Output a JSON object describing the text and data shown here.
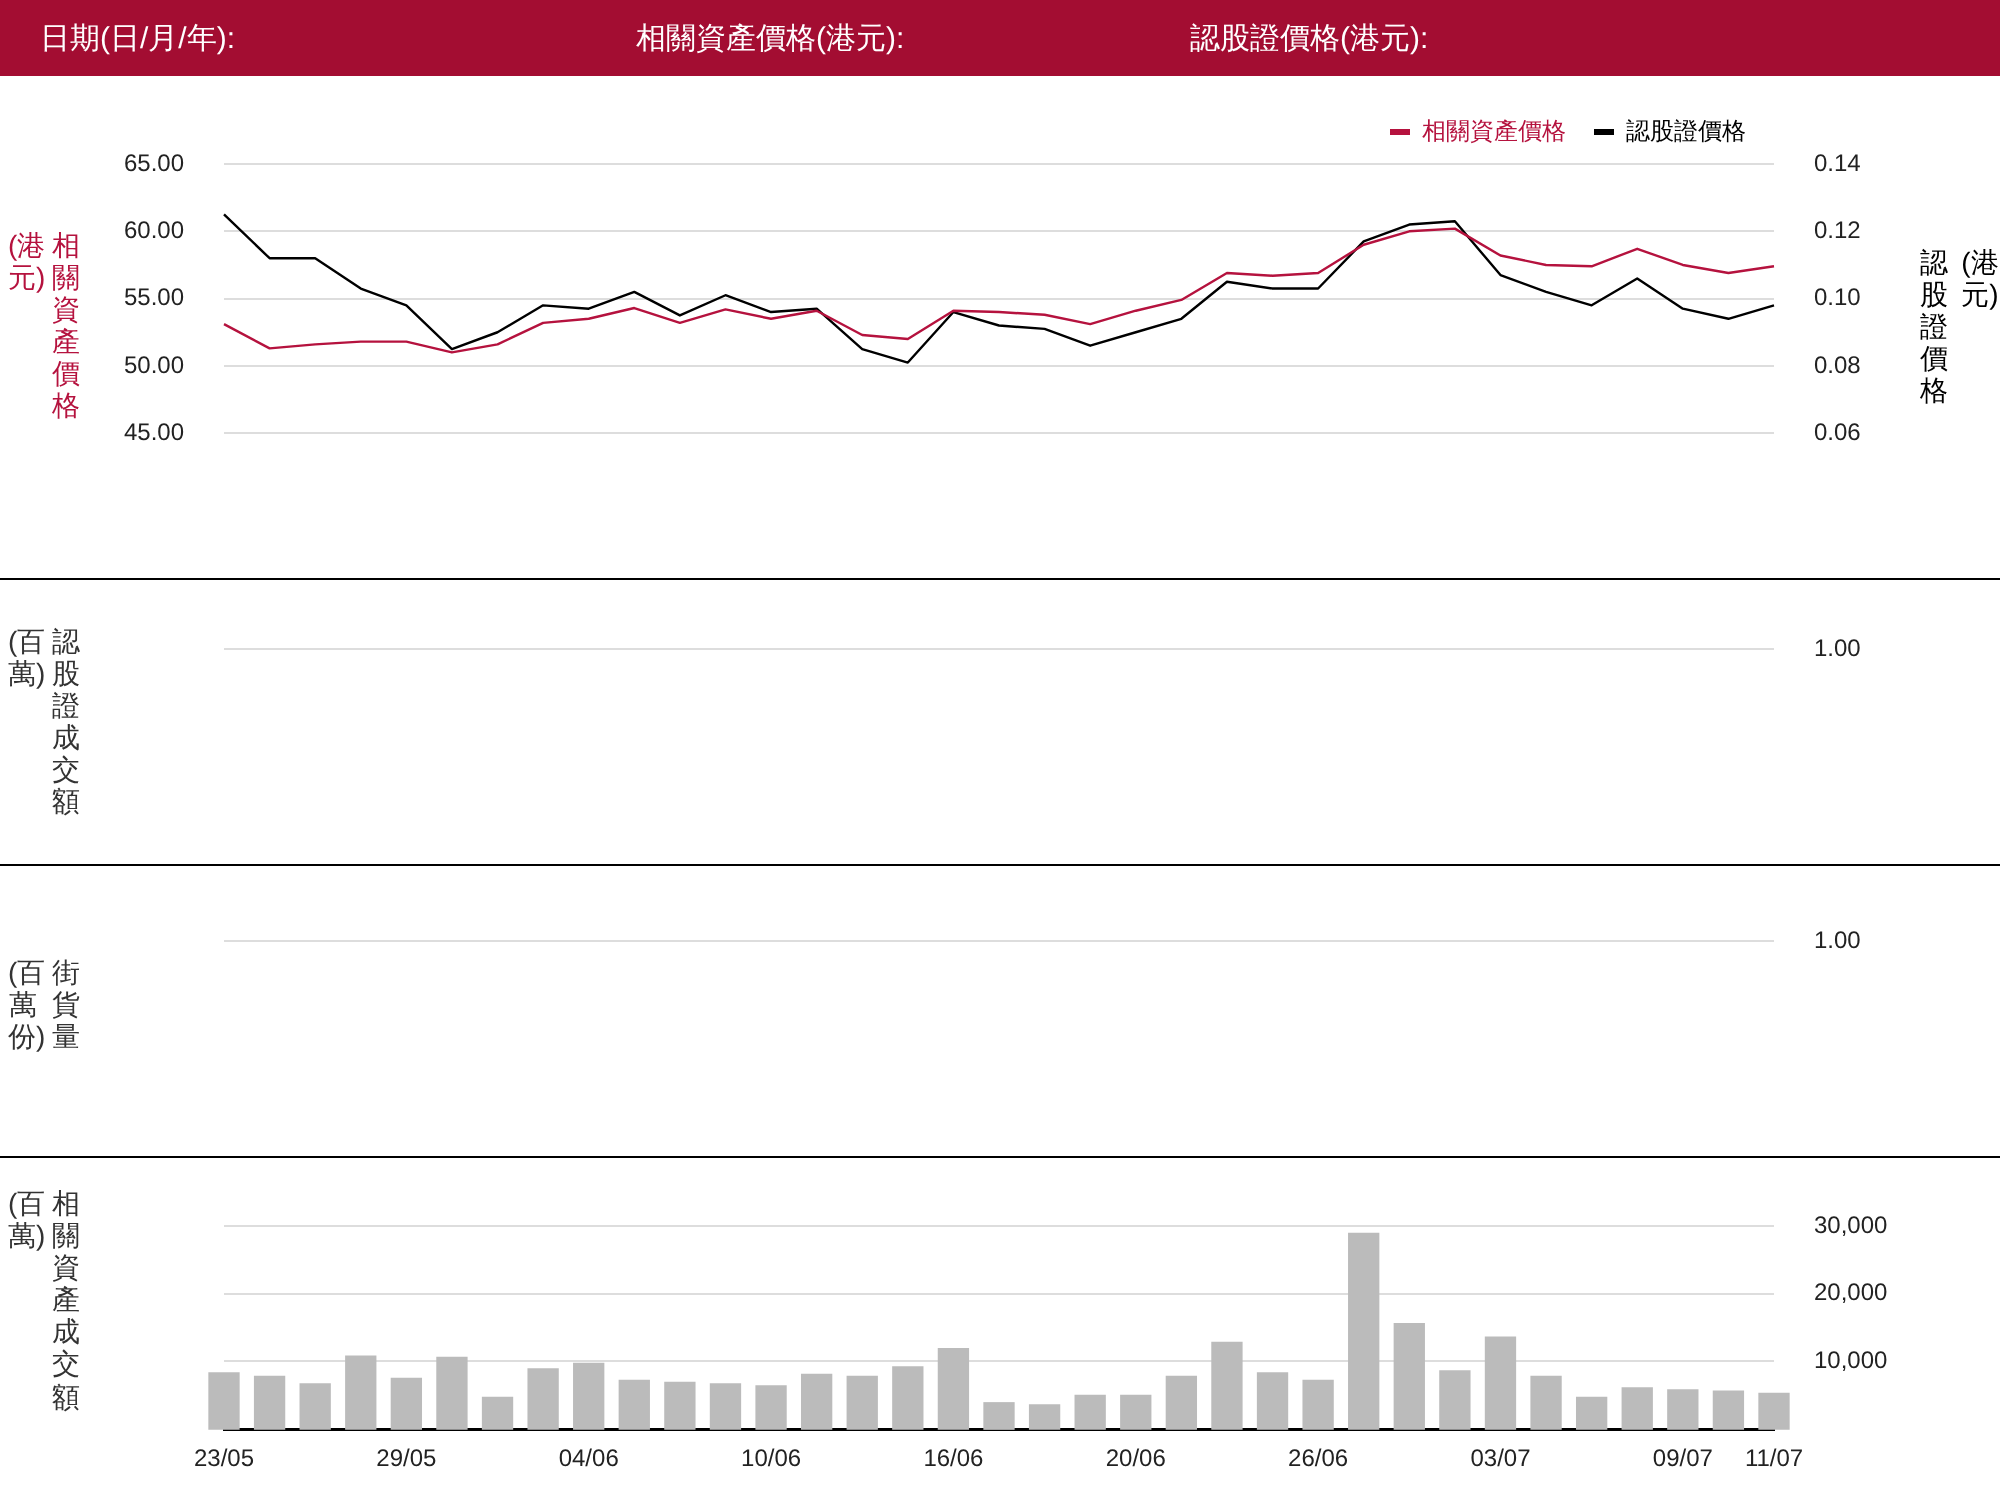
{
  "chart_data": [
    {
      "type": "other",
      "annotations": [
        "日期(日/月/年):",
        "相關資產價格(港元):",
        "認股證價格(港元):"
      ]
    },
    {
      "type": "line",
      "categories": [
        null,
        null,
        null,
        null,
        null,
        null,
        null,
        null,
        null,
        null,
        null,
        null,
        null,
        null,
        null,
        null,
        null,
        null,
        null,
        null,
        null,
        null,
        null,
        null,
        null,
        null,
        null,
        null,
        null,
        null,
        null,
        null,
        null,
        null,
        null
      ],
      "series": [
        {
          "name": "相關資產價格",
          "color": "#b5123e",
          "values": [
            53.1,
            51.3,
            51.6,
            51.8,
            51.8,
            51.0,
            51.6,
            53.2,
            53.5,
            54.3,
            53.2,
            54.2,
            53.5,
            54.1,
            52.3,
            52.0,
            54.1,
            54.0,
            53.8,
            53.1,
            54.1,
            54.9,
            56.9,
            56.7,
            56.9,
            59.0,
            60.0,
            60.2,
            58.2,
            57.5,
            57.4,
            58.7,
            57.5,
            56.9,
            57.4
          ]
        },
        {
          "name": "認股證價格",
          "color": "#000000",
          "axis": "y2",
          "values": [
            0.125,
            0.112,
            0.112,
            0.103,
            0.098,
            0.085,
            0.09,
            0.098,
            0.097,
            0.102,
            0.095,
            0.101,
            0.096,
            0.097,
            0.085,
            0.081,
            0.096,
            0.092,
            0.091,
            0.086,
            0.09,
            0.094,
            0.105,
            0.103,
            0.103,
            0.117,
            0.122,
            0.123,
            0.107,
            0.102,
            0.098,
            0.106,
            0.097,
            0.094,
            0.098
          ]
        }
      ],
      "ylabel": "相關資產價格(港元)",
      "y2label": "認股證價格(港元)",
      "ylim": [
        45,
        65
      ],
      "yticks": [
        {
          "value": 45,
          "label": "45.00"
        },
        {
          "value": 50,
          "label": "50.00"
        },
        {
          "value": 55,
          "label": "55.00"
        },
        {
          "value": 60,
          "label": "60.00"
        },
        {
          "value": 65,
          "label": "65.00"
        }
      ],
      "y2lim": [
        0.06,
        0.14
      ],
      "y2ticks": [
        0.06,
        0.08,
        {
          "value": 0.1,
          "label": "0.10"
        },
        0.12,
        0.14
      ],
      "grid": "y",
      "legend": "top right",
      "marker": "none",
      "line_style": "solid"
    },
    {
      "type": "other",
      "ylabel": "認股證成交額(百萬)",
      "annotations": [
        "1.00"
      ]
    },
    {
      "type": "other",
      "ylabel": "街貨量(百萬份)",
      "annotations": [
        "1.00"
      ]
    },
    {
      "type": "bar",
      "categories": [
        "23/05",
        null,
        null,
        null,
        "29/05",
        null,
        null,
        null,
        "04/06",
        null,
        null,
        null,
        "10/06",
        null,
        null,
        null,
        "16/06",
        null,
        null,
        null,
        "20/06",
        null,
        null,
        null,
        "26/06",
        null,
        null,
        null,
        "03/07",
        null,
        null,
        null,
        "09/07",
        null,
        "11/07"
      ],
      "values": [
        8300,
        7800,
        6700,
        10800,
        7500,
        10600,
        4700,
        8900,
        9700,
        7200,
        6900,
        6700,
        6400,
        8100,
        7800,
        9200,
        11900,
        3900,
        3600,
        5000,
        5000,
        7800,
        12800,
        8300,
        7200,
        28900,
        15600,
        8600,
        13600,
        7800,
        4700,
        6100,
        5800,
        5600,
        5300
      ],
      "color": "#bbbbbb",
      "ylabel": "相關資產成交額(百萬)",
      "ylim": [
        0,
        30000
      ],
      "yticks": [
        {
          "value": 10000,
          "label": "10,000"
        },
        {
          "value": 20000,
          "label": "20,000"
        },
        {
          "value": 30000,
          "label": "30,000"
        }
      ],
      "grid": "y"
    }
  ]
}
